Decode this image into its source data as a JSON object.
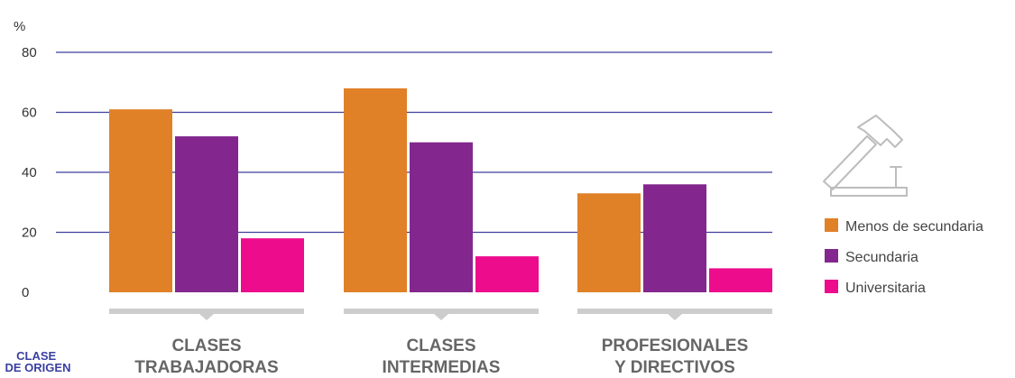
{
  "chart_data": {
    "type": "bar",
    "ylabel": "%",
    "ylim": [
      0,
      80
    ],
    "yticks": [
      0,
      20,
      40,
      60,
      80
    ],
    "grid": true,
    "legend_position": "right",
    "categories": [
      [
        "CLASES",
        "TRABAJADORAS"
      ],
      [
        "CLASES",
        "INTERMEDIAS"
      ],
      [
        "PROFESIONALES",
        "Y DIRECTIVOS"
      ]
    ],
    "xlabel": [
      "CLASE",
      "DE ORIGEN"
    ],
    "series": [
      {
        "name": "Menos de secundaria",
        "color": "#E08128",
        "values": [
          61,
          68,
          33
        ]
      },
      {
        "name": "Secundaria",
        "color": "#83278F",
        "values": [
          52,
          50,
          36
        ]
      },
      {
        "name": "Universitaria",
        "color": "#EC0C8C",
        "values": [
          18,
          12,
          8
        ]
      }
    ],
    "colors": {
      "gridline": "#3F3F9E",
      "bracket": "#CDCDCD",
      "category_label": "#666666",
      "axis_title": "#3A3FA1"
    },
    "icon": "hammer-and-nail-icon"
  }
}
